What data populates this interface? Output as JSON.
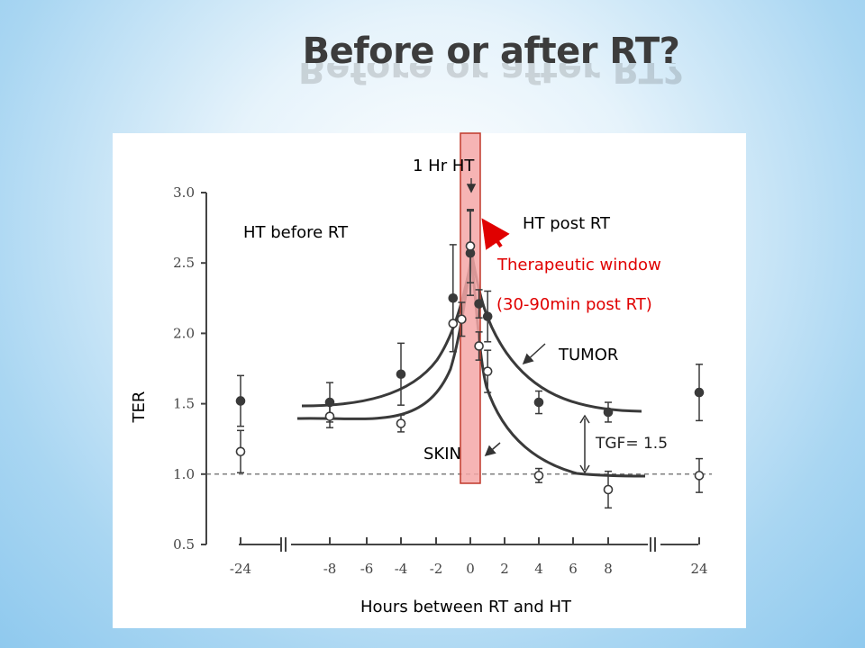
{
  "slide": {
    "title": "Before or after RT?"
  },
  "chart_data": {
    "type": "scatter",
    "title": "",
    "xlabel": "Hours between RT and HT",
    "ylabel": "TER",
    "ylim": [
      0.5,
      3.0
    ],
    "x_ticks": [
      "-24",
      "-8",
      "-6",
      "-4",
      "-2",
      "0",
      "2",
      "4",
      "6",
      "8",
      "24"
    ],
    "y_ticks": [
      "0.5",
      "1.0",
      "1.5",
      "2.0",
      "2.5",
      "3.0"
    ],
    "x_axis_break": true,
    "reference_line": {
      "y": 1.0,
      "style": "dashed"
    },
    "series": [
      {
        "name": "TUMOR",
        "marker": "filled-circle",
        "points": [
          {
            "x": "-24",
            "y": 1.52,
            "err": 0.18
          },
          {
            "x": "-8",
            "y": 1.51,
            "err": 0.14
          },
          {
            "x": "-4",
            "y": 1.71,
            "err": 0.22
          },
          {
            "x": "-1",
            "y": 2.25,
            "err": 0.38
          },
          {
            "x": "0",
            "y": 2.57,
            "err": 0.3
          },
          {
            "x": "0.5",
            "y": 2.21,
            "err": 0.1
          },
          {
            "x": "1",
            "y": 2.12,
            "err": 0.18
          },
          {
            "x": "4",
            "y": 1.51,
            "err": 0.08
          },
          {
            "x": "8",
            "y": 1.44,
            "err": 0.07
          },
          {
            "x": "24",
            "y": 1.58,
            "err": 0.2
          }
        ]
      },
      {
        "name": "SKIN",
        "marker": "open-circle",
        "points": [
          {
            "x": "-24",
            "y": 1.16,
            "err": 0.15
          },
          {
            "x": "-8",
            "y": 1.41,
            "err": 0.08
          },
          {
            "x": "-4",
            "y": 1.36,
            "err": 0.06
          },
          {
            "x": "-1",
            "y": 2.07,
            "err": 0.2
          },
          {
            "x": "-0.5",
            "y": 2.1,
            "err": 0.12
          },
          {
            "x": "0",
            "y": 2.62,
            "err": 0.26
          },
          {
            "x": "0.5",
            "y": 1.91,
            "err": 0.1
          },
          {
            "x": "1",
            "y": 1.73,
            "err": 0.15
          },
          {
            "x": "4",
            "y": 0.99,
            "err": 0.05
          },
          {
            "x": "8",
            "y": 0.89,
            "err": 0.13
          },
          {
            "x": "24",
            "y": 0.99,
            "err": 0.12
          }
        ]
      }
    ],
    "annotations": {
      "ht_window": "1 Hr HT",
      "ht_before": "HT before RT",
      "ht_post": "HT post RT",
      "therapeutic_window": "Therapeutic window",
      "therapeutic_window_detail": "(30-90min post RT)",
      "tumor_label": "TUMOR",
      "skin_label": "SKIN",
      "tgf_label": "TGF= 1.5"
    },
    "colors": {
      "data": "#3a3a3a",
      "highlight_fill": "#f4a7a7",
      "highlight_border": "#c0392b",
      "annotation_red": "#e00000"
    }
  }
}
